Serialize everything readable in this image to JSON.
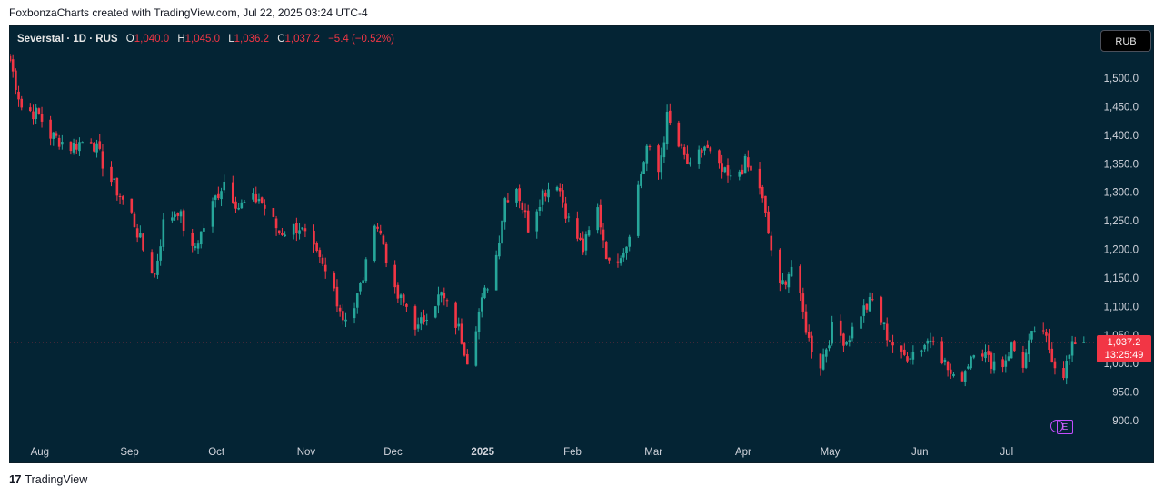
{
  "caption": "FoxbonzaCharts created with TradingView.com, Jul 22, 2025 03:24 UTC-4",
  "legend": {
    "symbol": "Severstal · 1D · RUS",
    "o_label": "O",
    "o_value": "1,040.0",
    "h_label": "H",
    "h_value": "1,045.0",
    "l_label": "L",
    "l_value": "1,036.2",
    "c_label": "C",
    "c_value": "1,037.2",
    "change": "−5.4 (−0.52%)"
  },
  "currency_button": "RUB",
  "last_price": {
    "value": "1,037.2",
    "countdown": "13:25:49"
  },
  "events_icon_label": "E",
  "brand": {
    "logo": "17",
    "name": "TradingView"
  },
  "colors": {
    "background": "#042434",
    "up": "#26a69a",
    "down": "#f23645",
    "text": "#d1d4dc"
  },
  "chart_data": {
    "type": "candlestick",
    "title": "Severstal · 1D · RUS",
    "ylim": [
      870,
      1560
    ],
    "y_ticks": [
      "1,500.0",
      "1,450.0",
      "1,400.0",
      "1,350.0",
      "1,300.0",
      "1,250.0",
      "1,200.0",
      "1,150.0",
      "1,100.0",
      "1,050.0",
      "1,000.0",
      "950.0",
      "900.0"
    ],
    "y_tick_values": [
      1500,
      1450,
      1400,
      1350,
      1300,
      1250,
      1200,
      1150,
      1100,
      1050,
      1000,
      950,
      900
    ],
    "x_ticks": [
      "Aug",
      "Sep",
      "Oct",
      "Nov",
      "Dec",
      "2025",
      "Feb",
      "Mar",
      "Apr",
      "May",
      "Jun",
      "Jul"
    ],
    "x_tick_dates": [
      "2024-08-01",
      "2024-09-01",
      "2024-10-01",
      "2024-11-01",
      "2024-12-01",
      "2025-01-01",
      "2025-02-01",
      "2025-03-01",
      "2025-04-01",
      "2025-05-01",
      "2025-06-01",
      "2025-07-01"
    ],
    "x_range": [
      "2024-07-22",
      "2025-07-29"
    ],
    "last_close": 1037.2,
    "path": [
      [
        "2024-07-22",
        1530
      ],
      [
        "2024-07-26",
        1450
      ],
      [
        "2024-08-01",
        1435
      ],
      [
        "2024-08-05",
        1400
      ],
      [
        "2024-08-12",
        1380
      ],
      [
        "2024-08-19",
        1395
      ],
      [
        "2024-08-26",
        1320
      ],
      [
        "2024-09-02",
        1260
      ],
      [
        "2024-09-06",
        1200
      ],
      [
        "2024-09-10",
        1155
      ],
      [
        "2024-09-13",
        1245
      ],
      [
        "2024-09-18",
        1270
      ],
      [
        "2024-09-23",
        1195
      ],
      [
        "2024-09-27",
        1240
      ],
      [
        "2024-10-01",
        1290
      ],
      [
        "2024-10-04",
        1320
      ],
      [
        "2024-10-09",
        1275
      ],
      [
        "2024-10-16",
        1290
      ],
      [
        "2024-10-23",
        1230
      ],
      [
        "2024-10-30",
        1240
      ],
      [
        "2024-11-04",
        1195
      ],
      [
        "2024-11-11",
        1130
      ],
      [
        "2024-11-14",
        1080
      ],
      [
        "2024-11-18",
        1100
      ],
      [
        "2024-11-22",
        1170
      ],
      [
        "2024-11-25",
        1255
      ],
      [
        "2024-11-28",
        1210
      ],
      [
        "2024-12-02",
        1120
      ],
      [
        "2024-12-06",
        1100
      ],
      [
        "2024-12-10",
        1060
      ],
      [
        "2024-12-14",
        1100
      ],
      [
        "2024-12-18",
        1120
      ],
      [
        "2024-12-24",
        1060
      ],
      [
        "2024-12-27",
        1010
      ],
      [
        "2024-12-31",
        1090
      ],
      [
        "2025-01-06",
        1190
      ],
      [
        "2025-01-09",
        1290
      ],
      [
        "2025-01-13",
        1310
      ],
      [
        "2025-01-17",
        1240
      ],
      [
        "2025-01-22",
        1300
      ],
      [
        "2025-01-27",
        1320
      ],
      [
        "2025-01-31",
        1250
      ],
      [
        "2025-02-05",
        1200
      ],
      [
        "2025-02-10",
        1270
      ],
      [
        "2025-02-14",
        1170
      ],
      [
        "2025-02-20",
        1210
      ],
      [
        "2025-02-24",
        1310
      ],
      [
        "2025-02-27",
        1380
      ],
      [
        "2025-03-03",
        1335
      ],
      [
        "2025-03-06",
        1430
      ],
      [
        "2025-03-10",
        1380
      ],
      [
        "2025-03-14",
        1340
      ],
      [
        "2025-03-19",
        1380
      ],
      [
        "2025-03-24",
        1340
      ],
      [
        "2025-03-28",
        1320
      ],
      [
        "2025-04-02",
        1350
      ],
      [
        "2025-04-07",
        1310
      ],
      [
        "2025-04-11",
        1200
      ],
      [
        "2025-04-14",
        1130
      ],
      [
        "2025-04-18",
        1170
      ],
      [
        "2025-04-21",
        1110
      ],
      [
        "2025-04-24",
        1040
      ],
      [
        "2025-04-28",
        1000
      ],
      [
        "2025-05-02",
        1060
      ],
      [
        "2025-05-07",
        1040
      ],
      [
        "2025-05-12",
        1090
      ],
      [
        "2025-05-16",
        1110
      ],
      [
        "2025-05-21",
        1050
      ],
      [
        "2025-05-26",
        1010
      ],
      [
        "2025-06-02",
        1030
      ],
      [
        "2025-06-06",
        1050
      ],
      [
        "2025-06-10",
        1000
      ],
      [
        "2025-06-14",
        960
      ],
      [
        "2025-06-17",
        990
      ],
      [
        "2025-06-21",
        1040
      ],
      [
        "2025-06-25",
        1005
      ],
      [
        "2025-06-30",
        1000
      ],
      [
        "2025-07-03",
        1030
      ],
      [
        "2025-07-07",
        1000
      ],
      [
        "2025-07-11",
        1060
      ],
      [
        "2025-07-15",
        1040
      ],
      [
        "2025-07-18",
        1000
      ],
      [
        "2025-07-21",
        985
      ],
      [
        "2025-07-25",
        1040
      ],
      [
        "2025-07-28",
        1037.2
      ]
    ]
  }
}
